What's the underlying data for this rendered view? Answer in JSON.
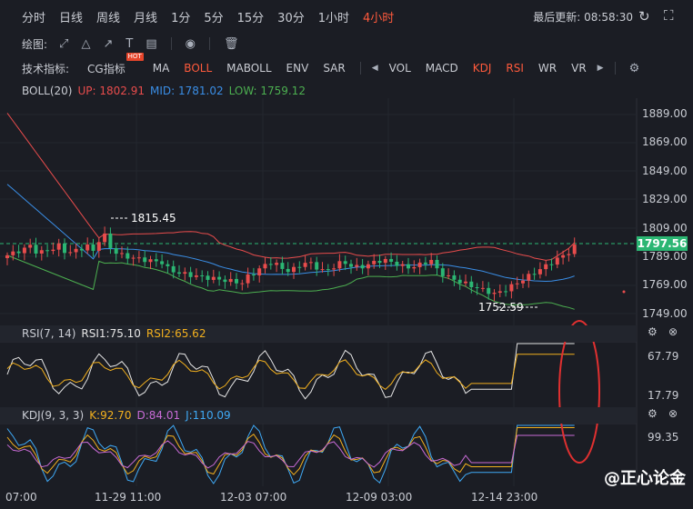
{
  "toolbar": {
    "periods": [
      "分时",
      "日线",
      "周线",
      "月线",
      "1分",
      "5分",
      "15分",
      "30分",
      "1小时",
      "4小时"
    ],
    "active_period": "4小时",
    "last_update_label": "最后更新: 08:58:30",
    "refresh_icon": "refresh-icon",
    "fullscreen_icon": "fullscreen-icon"
  },
  "draw": {
    "label": "绘图:",
    "tools": [
      "line-tool-icon",
      "triangle-tool-icon",
      "arrow-tool-icon",
      "text-tool-icon",
      "ruler-tool-icon"
    ],
    "text_tool": "T"
  },
  "indicators": {
    "label": "技术指标:",
    "items": [
      "CG指标",
      "MA",
      "BOLL",
      "MABOLL",
      "ENV",
      "SAR"
    ],
    "hot_badge": "HOT",
    "active_main": "BOLL",
    "items2": [
      "VOL",
      "MACD",
      "KDJ",
      "RSI",
      "WR",
      "VR"
    ],
    "active_sub": [
      "KDJ",
      "RSI"
    ]
  },
  "boll": {
    "title": "BOLL(20)",
    "up": "UP: 1802.91",
    "mid": "MID: 1781.02",
    "low": "LOW: 1759.12",
    "colors": {
      "up": "#e84c4c",
      "mid": "#3a8ee6",
      "low": "#4caf50"
    }
  },
  "price_axis": [
    "1889.00",
    "1869.00",
    "1849.00",
    "1829.00",
    "1809.00",
    "1789.00",
    "1769.00",
    "1749.00"
  ],
  "current_price": "1797.56",
  "high_mark": "1815.45",
  "low_mark": "1752.59",
  "rsi": {
    "title": "RSI(7, 14)",
    "rsi1": "RSI1:75.10",
    "rsi2": "RSI2:65.62",
    "axis": [
      "67.79",
      "17.79"
    ]
  },
  "kdj": {
    "title": "KDJ(9, 3, 3)",
    "k": "K:92.70",
    "d": "D:84.01",
    "j": "J:110.09",
    "axis": [
      "99.35"
    ]
  },
  "time_axis": [
    "07:00",
    "11-29 11:00",
    "12-03 07:00",
    "12-09 03:00",
    "12-14 23:00"
  ],
  "watermark": "@正心论金"
}
